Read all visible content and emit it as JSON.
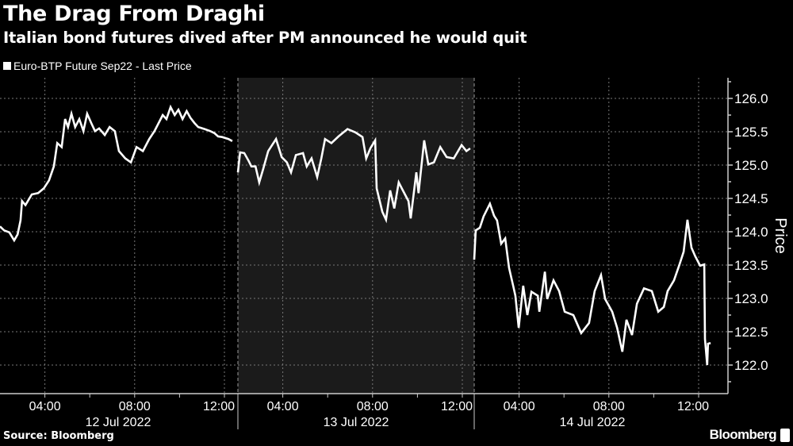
{
  "header": {
    "title": "The Drag From Draghi",
    "subtitle": "Italian bond futures dived after PM announced he would quit"
  },
  "footer": {
    "source": "Source: Bloomberg",
    "brand": "Bloomberg"
  },
  "colors": {
    "background": "#000000",
    "line": "#ffffff",
    "shaded_day": "#1b1b1b",
    "grid": "#777777"
  },
  "chart_data": {
    "type": "line",
    "title": "The Drag From Draghi",
    "subtitle": "Italian bond futures dived after PM announced he would quit",
    "ylabel": "Price",
    "xlabel": "",
    "ylim": [
      121.7,
      126.3
    ],
    "y_ticks": [
      "126.0",
      "125.5",
      "125.0",
      "124.5",
      "124.0",
      "123.5",
      "123.0",
      "122.5",
      "122.0"
    ],
    "y_axis_side": "right",
    "grid": true,
    "legend": "top-left",
    "x_tick_labels": [
      "04:00",
      "08:00",
      "12:00"
    ],
    "series": [
      {
        "name": "Euro-BTP Future Sep22 - Last Price",
        "days": [
          {
            "date": "12 Jul 2022",
            "shaded": false,
            "points": [
              [
                "02:00",
                124.08
              ],
              [
                "02:11",
                124.02
              ],
              [
                "02:25",
                123.99
              ],
              [
                "02:38",
                123.87
              ],
              [
                "02:47",
                123.96
              ],
              [
                "02:55",
                124.17
              ],
              [
                "02:59",
                124.46
              ],
              [
                "03:08",
                124.4
              ],
              [
                "03:25",
                124.56
              ],
              [
                "03:42",
                124.58
              ],
              [
                "03:57",
                124.65
              ],
              [
                "04:11",
                124.77
              ],
              [
                "04:24",
                124.98
              ],
              [
                "04:33",
                125.33
              ],
              [
                "04:45",
                125.27
              ],
              [
                "04:54",
                125.69
              ],
              [
                "05:02",
                125.57
              ],
              [
                "05:11",
                125.77
              ],
              [
                "05:21",
                125.57
              ],
              [
                "05:32",
                125.69
              ],
              [
                "05:43",
                125.51
              ],
              [
                "05:53",
                125.77
              ],
              [
                "06:04",
                125.63
              ],
              [
                "06:14",
                125.51
              ],
              [
                "06:25",
                125.55
              ],
              [
                "06:40",
                125.45
              ],
              [
                "06:53",
                125.57
              ],
              [
                "07:07",
                125.51
              ],
              [
                "07:18",
                125.21
              ],
              [
                "07:35",
                125.1
              ],
              [
                "07:50",
                125.04
              ],
              [
                "08:05",
                125.27
              ],
              [
                "08:22",
                125.21
              ],
              [
                "08:39",
                125.39
              ],
              [
                "08:53",
                125.51
              ],
              [
                "09:04",
                125.63
              ],
              [
                "09:15",
                125.75
              ],
              [
                "09:25",
                125.69
              ],
              [
                "09:36",
                125.87
              ],
              [
                "09:47",
                125.75
              ],
              [
                "09:57",
                125.83
              ],
              [
                "10:08",
                125.69
              ],
              [
                "10:19",
                125.81
              ],
              [
                "10:29",
                125.71
              ],
              [
                "10:40",
                125.63
              ],
              [
                "10:50",
                125.57
              ],
              [
                "11:07",
                125.54
              ],
              [
                "11:22",
                125.51
              ],
              [
                "11:33",
                125.48
              ],
              [
                "11:43",
                125.43
              ],
              [
                "11:54",
                125.42
              ],
              [
                "12:11",
                125.39
              ],
              [
                "12:21",
                125.36
              ]
            ]
          },
          {
            "date": "13 Jul 2022",
            "shaded": true,
            "points": [
              [
                "02:00",
                124.89
              ],
              [
                "02:06",
                125.19
              ],
              [
                "02:17",
                125.18
              ],
              [
                "02:28",
                125.07
              ],
              [
                "02:36",
                124.98
              ],
              [
                "02:47",
                124.98
              ],
              [
                "02:57",
                124.74
              ],
              [
                "03:08",
                124.95
              ],
              [
                "03:21",
                125.21
              ],
              [
                "03:42",
                125.39
              ],
              [
                "03:57",
                125.12
              ],
              [
                "04:11",
                125.04
              ],
              [
                "04:22",
                124.89
              ],
              [
                "04:35",
                125.15
              ],
              [
                "04:54",
                125.18
              ],
              [
                "05:04",
                124.98
              ],
              [
                "05:17",
                125.1
              ],
              [
                "05:32",
                124.82
              ],
              [
                "05:43",
                125.1
              ],
              [
                "05:53",
                125.39
              ],
              [
                "06:10",
                125.33
              ],
              [
                "06:29",
                125.43
              ],
              [
                "06:53",
                125.54
              ],
              [
                "07:14",
                125.49
              ],
              [
                "07:33",
                125.42
              ],
              [
                "07:43",
                125.1
              ],
              [
                "07:54",
                125.25
              ],
              [
                "08:07",
                125.37
              ],
              [
                "08:11",
                124.65
              ],
              [
                "08:26",
                124.3
              ],
              [
                "08:36",
                124.18
              ],
              [
                "08:47",
                124.62
              ],
              [
                "08:58",
                124.35
              ],
              [
                "09:10",
                124.74
              ],
              [
                "09:21",
                124.62
              ],
              [
                "09:36",
                124.46
              ],
              [
                "09:42",
                124.2
              ],
              [
                "09:57",
                124.89
              ],
              [
                "10:03",
                124.58
              ],
              [
                "10:18",
                125.37
              ],
              [
                "10:29",
                125.01
              ],
              [
                "10:44",
                125.04
              ],
              [
                "11:01",
                125.27
              ],
              [
                "11:18",
                125.12
              ],
              [
                "11:37",
                125.1
              ],
              [
                "11:58",
                125.3
              ],
              [
                "12:11",
                125.21
              ],
              [
                "12:21",
                125.25
              ]
            ]
          },
          {
            "date": "14 Jul 2022",
            "shaded": false,
            "points": [
              [
                "02:00",
                123.58
              ],
              [
                "02:04",
                124.02
              ],
              [
                "02:15",
                124.06
              ],
              [
                "02:25",
                124.23
              ],
              [
                "02:42",
                124.42
              ],
              [
                "02:53",
                124.24
              ],
              [
                "03:01",
                124.17
              ],
              [
                "03:12",
                123.82
              ],
              [
                "03:23",
                123.9
              ],
              [
                "03:33",
                123.46
              ],
              [
                "03:44",
                123.19
              ],
              [
                "03:50",
                123.04
              ],
              [
                "03:59",
                122.56
              ],
              [
                "04:11",
                123.19
              ],
              [
                "04:22",
                122.75
              ],
              [
                "04:33",
                123.1
              ],
              [
                "04:50",
                123.04
              ],
              [
                "04:54",
                122.8
              ],
              [
                "05:09",
                123.4
              ],
              [
                "05:15",
                122.99
              ],
              [
                "05:32",
                123.27
              ],
              [
                "05:47",
                123.11
              ],
              [
                "06:02",
                122.8
              ],
              [
                "06:25",
                122.75
              ],
              [
                "06:46",
                122.48
              ],
              [
                "07:07",
                122.63
              ],
              [
                "07:22",
                123.11
              ],
              [
                "07:39",
                123.35
              ],
              [
                "07:50",
                122.99
              ],
              [
                "08:09",
                122.8
              ],
              [
                "08:22",
                122.56
              ],
              [
                "08:36",
                122.2
              ],
              [
                "08:47",
                122.68
              ],
              [
                "09:02",
                122.45
              ],
              [
                "09:15",
                122.92
              ],
              [
                "09:34",
                123.15
              ],
              [
                "09:55",
                123.11
              ],
              [
                "10:12",
                122.8
              ],
              [
                "10:27",
                122.87
              ],
              [
                "10:37",
                123.11
              ],
              [
                "10:54",
                123.27
              ],
              [
                "11:09",
                123.51
              ],
              [
                "11:20",
                123.7
              ],
              [
                "11:30",
                124.18
              ],
              [
                "11:41",
                123.76
              ],
              [
                "11:51",
                123.63
              ],
              [
                "12:04",
                123.49
              ],
              [
                "12:15",
                123.51
              ],
              [
                "12:17",
                122.39
              ],
              [
                "12:23",
                122.0
              ],
              [
                "12:25",
                122.32
              ],
              [
                "12:32",
                122.33
              ]
            ]
          }
        ]
      }
    ]
  }
}
